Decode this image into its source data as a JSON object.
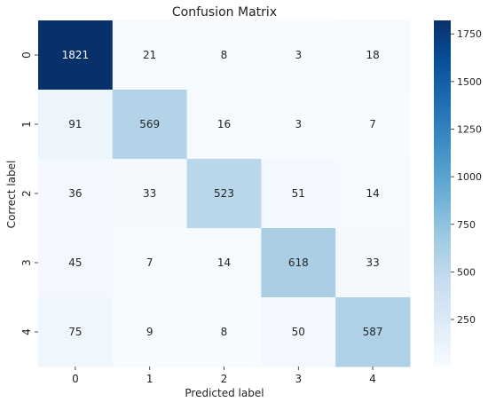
{
  "chart_data": {
    "type": "heatmap",
    "title": "Confusion Matrix",
    "xlabel": "Predicted label",
    "ylabel": "Correct label",
    "x_categories": [
      "0",
      "1",
      "2",
      "3",
      "4"
    ],
    "y_categories": [
      "0",
      "1",
      "2",
      "3",
      "4"
    ],
    "values": [
      [
        1821,
        21,
        8,
        3,
        18
      ],
      [
        91,
        569,
        16,
        3,
        7
      ],
      [
        36,
        33,
        523,
        51,
        14
      ],
      [
        45,
        7,
        14,
        618,
        33
      ],
      [
        75,
        9,
        8,
        50,
        587
      ]
    ],
    "colorbar": {
      "min": 3,
      "max": 1821,
      "ticks": [
        250,
        500,
        750,
        1000,
        1250,
        1500,
        1750
      ],
      "tick_labels": [
        "250",
        "500",
        "750",
        "1000",
        "1250",
        "1500",
        "1750"
      ],
      "colormap": "Blues",
      "position": "right"
    },
    "grid": false,
    "colors": {
      "low": "#f7fbff",
      "high": "#08306b",
      "text_dark": "#262626",
      "text_light": "#ffffff"
    }
  }
}
